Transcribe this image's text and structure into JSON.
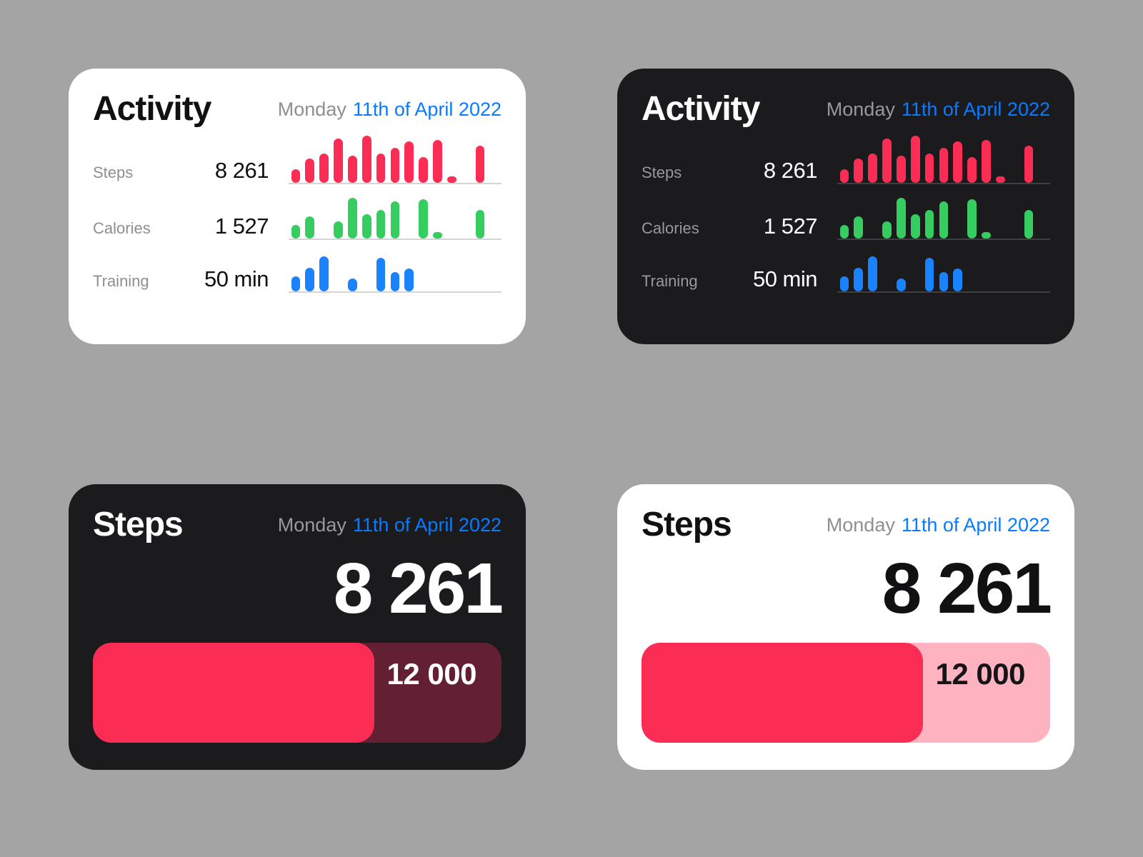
{
  "page": {
    "background": "#a4a4a4"
  },
  "colors": {
    "red": "#FC2D55",
    "green": "#35CD60",
    "blue": "#1982FC",
    "date_blue": "#0A7AFF",
    "progress_track_dark": "#63203*3",
    "progress_track_dark_fixed": "#632033",
    "progress_track_light": "#FFB3C1"
  },
  "activity_card": {
    "title": "Activity",
    "date_prefix": "Monday",
    "date": "11th of April 2022",
    "rows": [
      {
        "label": "Steps",
        "value": "8 261"
      },
      {
        "label": "Calories",
        "value": "1 527"
      },
      {
        "label": "Training",
        "value": "50 min"
      }
    ]
  },
  "steps_card": {
    "title": "Steps",
    "date_prefix": "Monday",
    "date": "11th of April 2022",
    "value": "8 261",
    "goal": "12 000",
    "progress_percent": 68.8
  },
  "chart_data": [
    {
      "type": "bar",
      "name": "steps-by-hour",
      "color": "red",
      "unit": "percent-of-max",
      "values": [
        30,
        52,
        62,
        95,
        58,
        100,
        62,
        75,
        88,
        55,
        92,
        12,
        0,
        80,
        0
      ]
    },
    {
      "type": "bar",
      "name": "calories-by-hour",
      "color": "green",
      "unit": "percent-of-max",
      "values": [
        32,
        50,
        0,
        40,
        92,
        55,
        65,
        85,
        0,
        90,
        14,
        0,
        0,
        65,
        0
      ]
    },
    {
      "type": "bar",
      "name": "training-by-hour",
      "color": "blue",
      "unit": "percent-of-max",
      "values": [
        40,
        62,
        92,
        0,
        35,
        0,
        88,
        50,
        60,
        0,
        0,
        0,
        0,
        0,
        0
      ]
    }
  ]
}
